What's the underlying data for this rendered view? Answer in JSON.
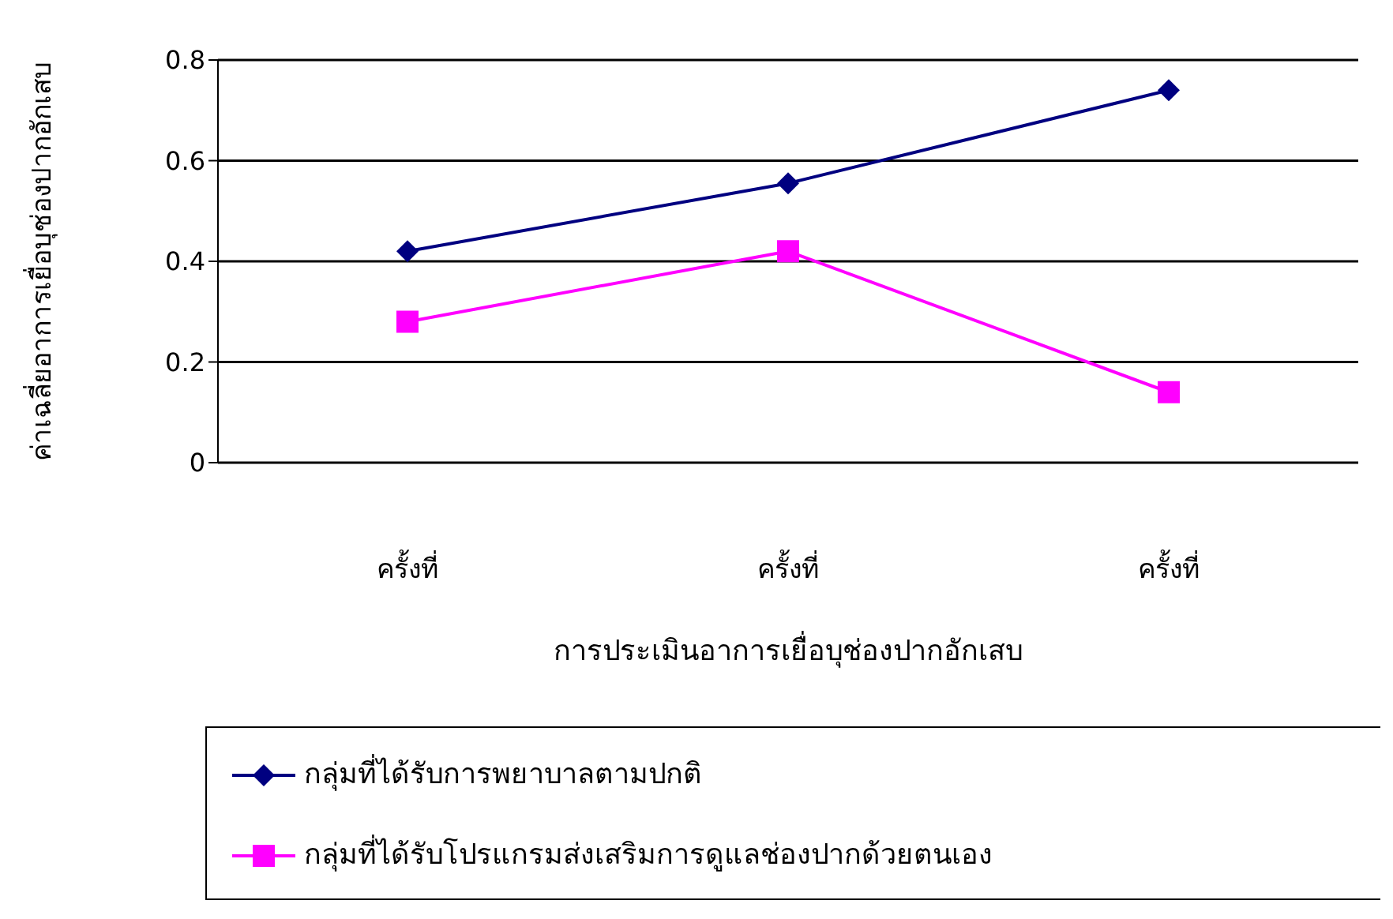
{
  "chart_data": {
    "type": "line",
    "xlabel": "การประเมินอาการเยื่อบุช่องปากอักเสบ",
    "ylabel": "ค่าเฉลี่ยอาการเยื่อบุช่องปากอักเสบ",
    "categories": [
      "ครั้งที่",
      "ครั้งที่",
      "ครั้งที่"
    ],
    "ylim": [
      0,
      0.8
    ],
    "yticks": [
      0,
      0.2,
      0.4,
      0.6,
      0.8
    ],
    "grid": "y",
    "legend": "bottom",
    "series": [
      {
        "name": "กลุ่มที่ได้รับการพยาบาลตามปกติ",
        "color": "#000080",
        "marker": "diamond",
        "values": [
          0.42,
          0.555,
          0.74
        ]
      },
      {
        "name": "กลุ่มที่ได้รับโปรแกรมส่งเสริมการดูแลช่องปากด้วยตนเอง",
        "color": "#ff00ff",
        "marker": "square",
        "values": [
          0.28,
          0.42,
          0.14
        ]
      }
    ]
  }
}
